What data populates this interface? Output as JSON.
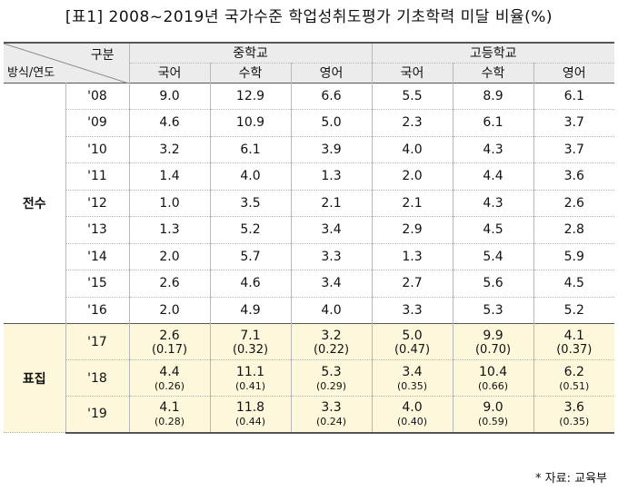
{
  "title": "[표1] 2008~2019년 국가수준 학업성취도평가 기초학력 미달 비율(%)",
  "header": {
    "corner_top": "구분",
    "corner_bottom": "방식/연도",
    "groups": [
      "중학교",
      "고등학교"
    ],
    "subjects": [
      "국어",
      "수학",
      "영어",
      "국어",
      "수학",
      "영어"
    ]
  },
  "sections": [
    {
      "label": "전수",
      "rows": [
        {
          "year": "'08",
          "values": [
            "9.0",
            "12.9",
            "6.6",
            "5.5",
            "8.9",
            "6.1"
          ]
        },
        {
          "year": "'09",
          "values": [
            "4.6",
            "10.9",
            "5.0",
            "2.3",
            "6.1",
            "3.7"
          ]
        },
        {
          "year": "'10",
          "values": [
            "3.2",
            "6.1",
            "3.9",
            "4.0",
            "4.3",
            "3.7"
          ]
        },
        {
          "year": "'11",
          "values": [
            "1.4",
            "4.0",
            "1.3",
            "2.0",
            "4.4",
            "3.6"
          ]
        },
        {
          "year": "'12",
          "values": [
            "1.0",
            "3.5",
            "2.1",
            "2.1",
            "4.3",
            "2.6"
          ]
        },
        {
          "year": "'13",
          "values": [
            "1.3",
            "5.2",
            "3.4",
            "2.9",
            "4.5",
            "2.8"
          ]
        },
        {
          "year": "'14",
          "values": [
            "2.0",
            "5.7",
            "3.3",
            "1.3",
            "5.4",
            "5.9"
          ]
        },
        {
          "year": "'15",
          "values": [
            "2.6",
            "4.6",
            "3.4",
            "2.7",
            "5.6",
            "4.5"
          ]
        },
        {
          "year": "'16",
          "values": [
            "2.0",
            "4.9",
            "4.0",
            "3.3",
            "5.3",
            "5.2"
          ]
        }
      ]
    },
    {
      "label": "표집",
      "rows": [
        {
          "year": "'17",
          "values": [
            "2.6",
            "7.1",
            "3.2",
            "5.0",
            "9.9",
            "4.1"
          ],
          "errors": [
            "(0.17)",
            "(0.32)",
            "(0.22)",
            "(0.47)",
            "(0.70)",
            "(0.37)"
          ]
        },
        {
          "year": "'18",
          "values": [
            "4.4",
            "11.1",
            "5.3",
            "3.4",
            "10.4",
            "6.2"
          ],
          "errors": [
            "(0.26)",
            "(0.41)",
            "(0.29)",
            "(0.35)",
            "(0.66)",
            "(0.51)"
          ]
        },
        {
          "year": "'19",
          "values": [
            "4.1",
            "11.8",
            "3.3",
            "4.0",
            "9.0",
            "3.6"
          ],
          "errors": [
            "(0.28)",
            "(0.44)",
            "(0.24)",
            "(0.40)",
            "(0.59)",
            "(0.35)"
          ]
        }
      ]
    }
  ],
  "source_note": "* 자료: 교육부",
  "colors": {
    "header_bg": "#ececec",
    "sample_bg": "#fdf8dc",
    "rule": "#555555"
  }
}
